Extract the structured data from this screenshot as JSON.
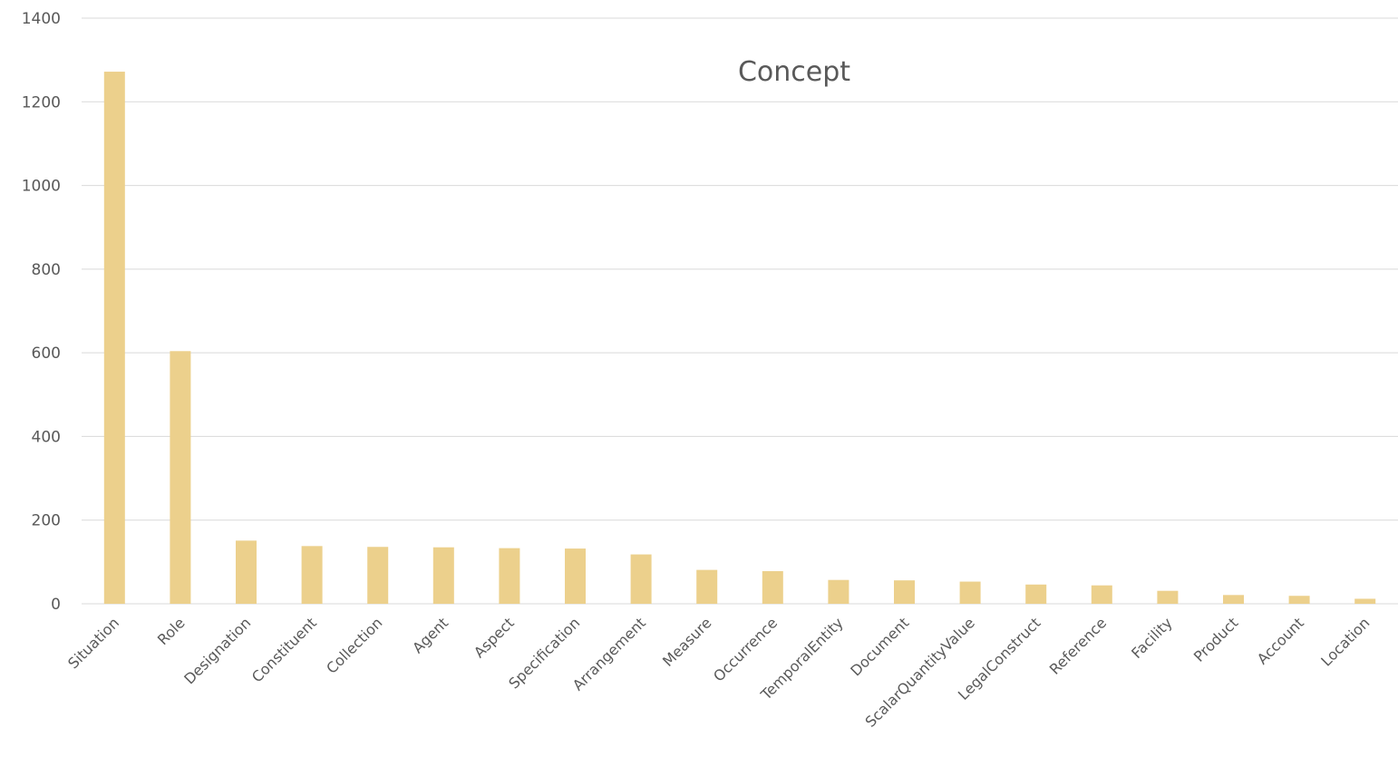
{
  "chart_data": {
    "type": "bar",
    "title": "Concept",
    "xlabel": "",
    "ylabel": "",
    "ylim": [
      0,
      1400
    ],
    "yticks": [
      0,
      200,
      400,
      600,
      800,
      1000,
      1200,
      1400
    ],
    "grid": true,
    "bar_color": "#ecd08c",
    "categories": [
      "Situation",
      "Role",
      "Designation",
      "Constituent",
      "Collection",
      "Agent",
      "Aspect",
      "Specification",
      "Arrangement",
      "Measure",
      "Occurrence",
      "TemporalEntity",
      "Document",
      "ScalarQuantityValue",
      "LegalConstruct",
      "Reference",
      "Facility",
      "Product",
      "Account",
      "Location"
    ],
    "values": [
      1272,
      604,
      151,
      138,
      136,
      135,
      133,
      132,
      118,
      81,
      78,
      57,
      56,
      53,
      46,
      44,
      31,
      21,
      19,
      12
    ]
  }
}
